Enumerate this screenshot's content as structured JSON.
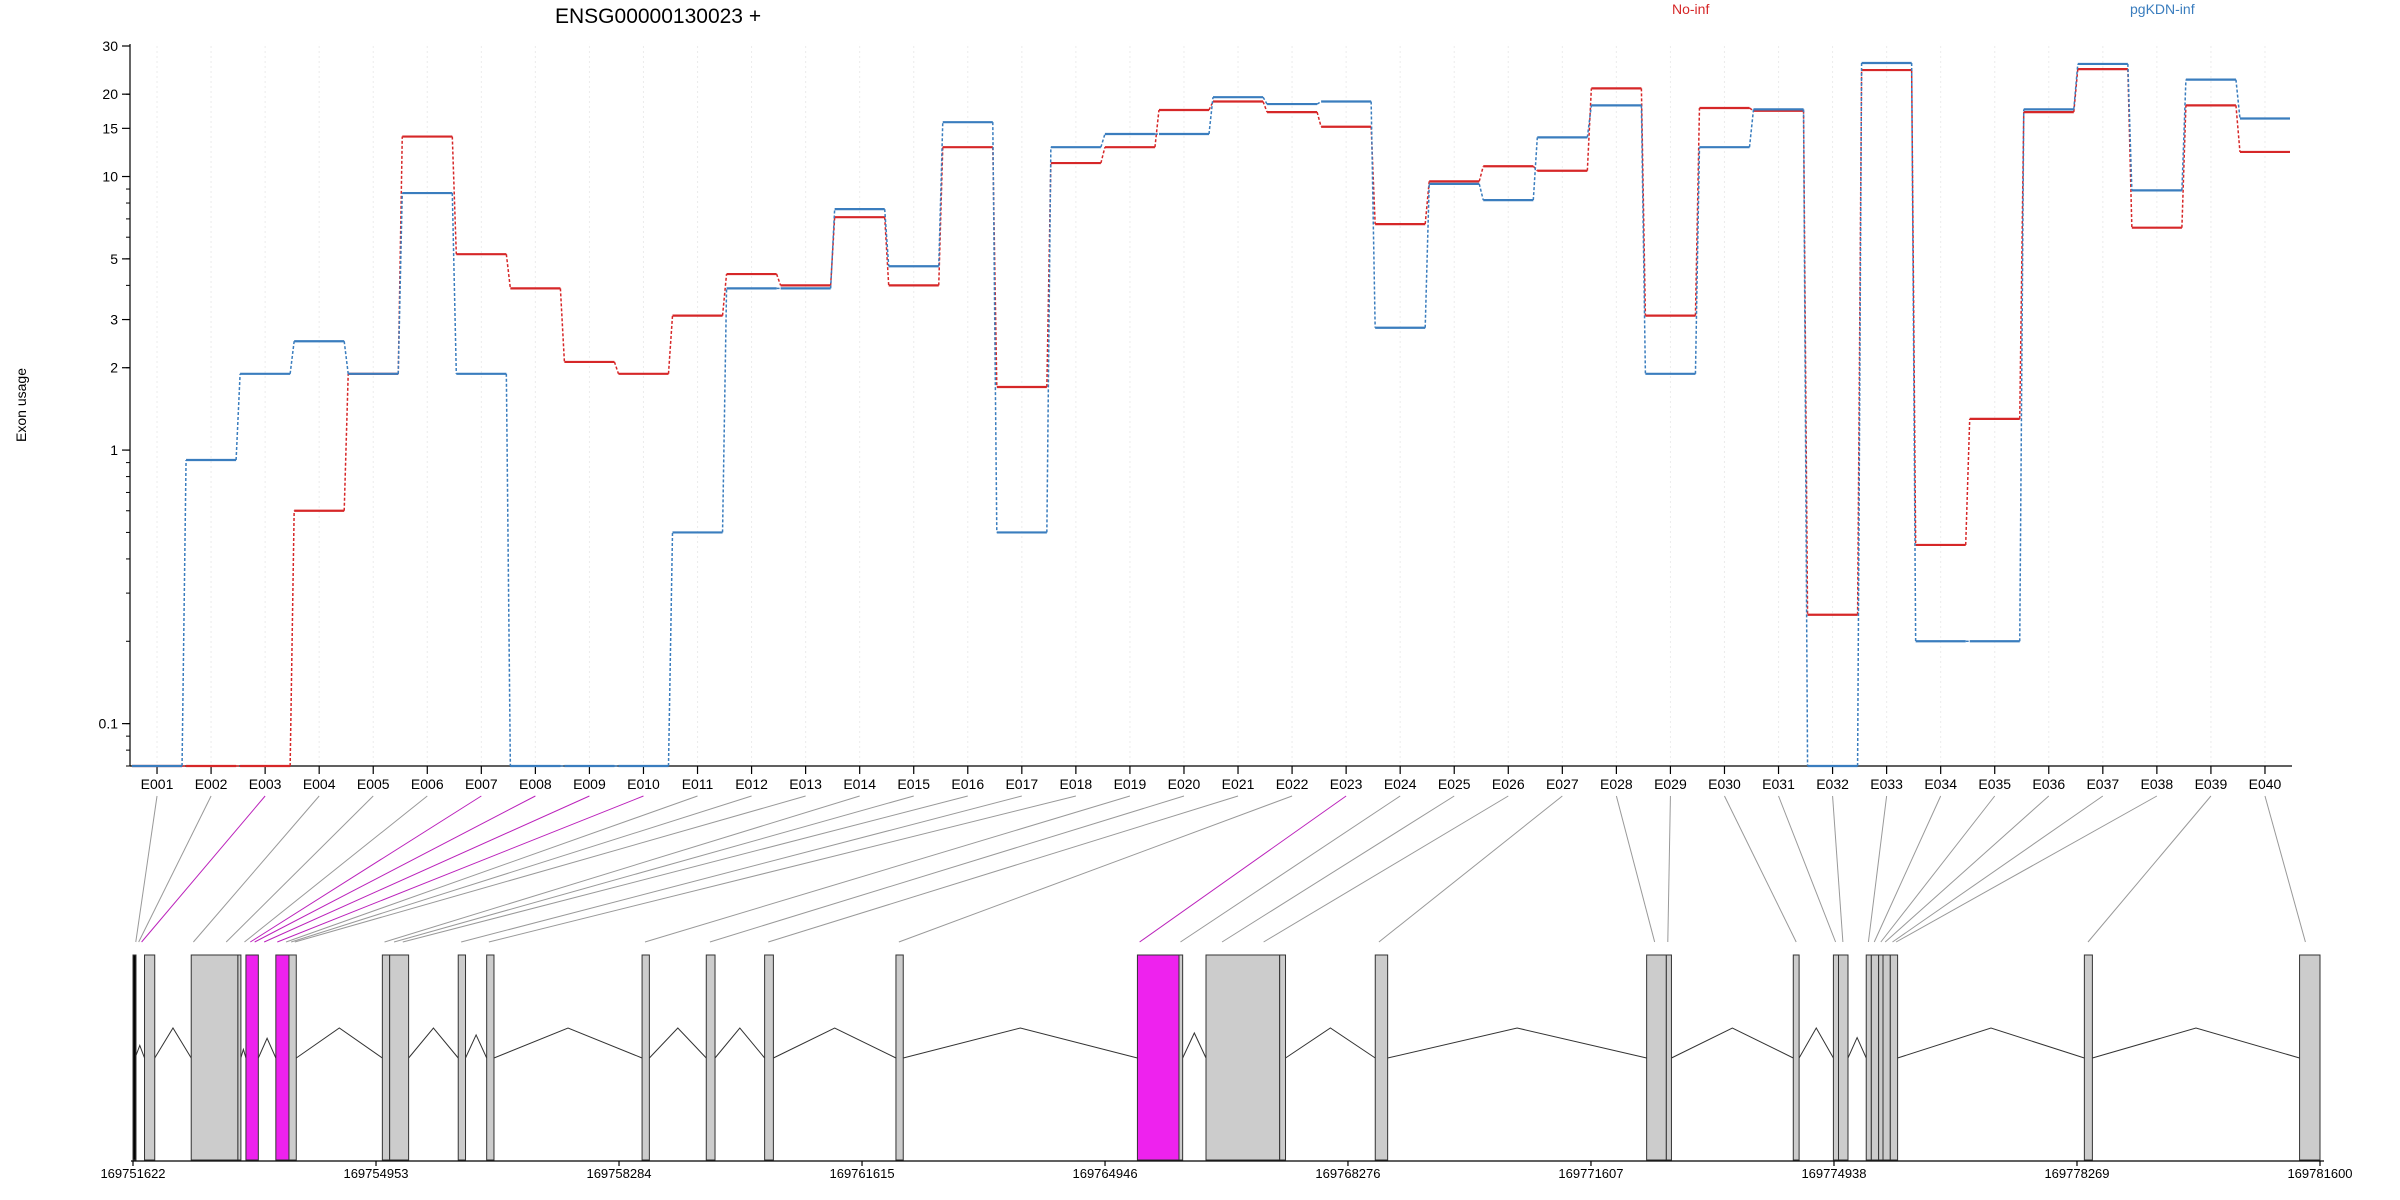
{
  "chart_data": {
    "type": "line",
    "title": "ENSG00000130023 +",
    "ylabel": "Exon usage",
    "y_scale": "log",
    "ylim": [
      0.07,
      30
    ],
    "y_ticks": [
      {
        "value": 0.1,
        "label": "0.1"
      },
      {
        "value": 1,
        "label": "1"
      },
      {
        "value": 2,
        "label": "2"
      },
      {
        "value": 3,
        "label": "3"
      },
      {
        "value": 5,
        "label": "5"
      },
      {
        "value": 10,
        "label": "10"
      },
      {
        "value": 15,
        "label": "15"
      },
      {
        "value": 20,
        "label": "20"
      },
      {
        "value": 30,
        "label": "30"
      }
    ],
    "grid": "vertical dotted lines at each exon",
    "legend_position": "top",
    "categories": [
      "E001",
      "E002",
      "E003",
      "E004",
      "E005",
      "E006",
      "E007",
      "E008",
      "E009",
      "E010",
      "E011",
      "E012",
      "E013",
      "E014",
      "E015",
      "E016",
      "E017",
      "E018",
      "E019",
      "E020",
      "E021",
      "E022",
      "E023",
      "E024",
      "E025",
      "E026",
      "E027",
      "E028",
      "E029",
      "E030",
      "E031",
      "E032",
      "E033",
      "E034",
      "E035",
      "E036",
      "E037",
      "E038",
      "E039",
      "E040"
    ],
    "series": [
      {
        "name": "No-inf",
        "color": "#d62728",
        "values": [
          0.07,
          0.07,
          0.07,
          0.6,
          1.9,
          14.0,
          5.2,
          3.9,
          2.1,
          1.9,
          3.1,
          4.4,
          4.0,
          7.1,
          4.0,
          12.8,
          1.7,
          11.2,
          12.8,
          17.5,
          18.8,
          17.2,
          15.2,
          6.7,
          9.6,
          10.9,
          10.5,
          21.0,
          3.1,
          17.8,
          17.4,
          0.25,
          24.5,
          0.45,
          1.3,
          17.2,
          24.7,
          6.5,
          18.2,
          12.3
        ]
      },
      {
        "name": "pgKDN-inf",
        "color": "#3a7dbe",
        "values": [
          0.07,
          0.92,
          1.9,
          2.5,
          1.9,
          8.7,
          1.9,
          0.07,
          0.07,
          0.07,
          0.5,
          3.9,
          3.9,
          7.6,
          4.7,
          15.8,
          0.5,
          12.8,
          14.3,
          14.3,
          19.5,
          18.4,
          18.8,
          2.8,
          9.4,
          8.2,
          13.9,
          18.2,
          1.9,
          12.8,
          17.6,
          0.07,
          26.0,
          0.2,
          0.2,
          17.6,
          25.8,
          8.9,
          22.6,
          16.3
        ]
      }
    ],
    "gene_model": {
      "coordinate_labels": [
        "169751622",
        "169754953",
        "169758284",
        "169761615",
        "169764946",
        "169768276",
        "169771607",
        "169774938",
        "169778269",
        "169781600"
      ],
      "coordinate_range": [
        169751622,
        169781600
      ],
      "exons": [
        {
          "start": 169751622,
          "end": 169751650,
          "color": "#000000"
        },
        {
          "start": 169751780,
          "end": 169751920,
          "color": "#cccccc"
        },
        {
          "start": 169752420,
          "end": 169753060,
          "color": "#cccccc"
        },
        {
          "start": 169753060,
          "end": 169753100,
          "color": "#cccccc"
        },
        {
          "start": 169753170,
          "end": 169753340,
          "color": "#ee22ee"
        },
        {
          "start": 169753580,
          "end": 169753760,
          "color": "#ee22ee"
        },
        {
          "start": 169753760,
          "end": 169753860,
          "color": "#cccccc"
        },
        {
          "start": 169755040,
          "end": 169755140,
          "color": "#cccccc"
        },
        {
          "start": 169755140,
          "end": 169755400,
          "color": "#cccccc"
        },
        {
          "start": 169756080,
          "end": 169756180,
          "color": "#cccccc"
        },
        {
          "start": 169756470,
          "end": 169756570,
          "color": "#cccccc"
        },
        {
          "start": 169758600,
          "end": 169758700,
          "color": "#cccccc"
        },
        {
          "start": 169759480,
          "end": 169759600,
          "color": "#cccccc"
        },
        {
          "start": 169760280,
          "end": 169760400,
          "color": "#cccccc"
        },
        {
          "start": 169762080,
          "end": 169762180,
          "color": "#cccccc"
        },
        {
          "start": 169765390,
          "end": 169765960,
          "color": "#ee22ee"
        },
        {
          "start": 169765960,
          "end": 169766010,
          "color": "#cccccc"
        },
        {
          "start": 169766330,
          "end": 169767340,
          "color": "#cccccc"
        },
        {
          "start": 169767340,
          "end": 169767420,
          "color": "#cccccc"
        },
        {
          "start": 169768650,
          "end": 169768820,
          "color": "#cccccc"
        },
        {
          "start": 169772370,
          "end": 169772640,
          "color": "#cccccc"
        },
        {
          "start": 169772640,
          "end": 169772710,
          "color": "#cccccc"
        },
        {
          "start": 169774380,
          "end": 169774460,
          "color": "#cccccc"
        },
        {
          "start": 169774930,
          "end": 169775000,
          "color": "#cccccc"
        },
        {
          "start": 169775000,
          "end": 169775130,
          "color": "#cccccc"
        },
        {
          "start": 169775380,
          "end": 169775450,
          "color": "#cccccc"
        },
        {
          "start": 169775450,
          "end": 169775550,
          "color": "#cccccc"
        },
        {
          "start": 169775550,
          "end": 169775610,
          "color": "#cccccc"
        },
        {
          "start": 169775610,
          "end": 169775710,
          "color": "#cccccc"
        },
        {
          "start": 169775710,
          "end": 169775810,
          "color": "#cccccc"
        },
        {
          "start": 169778370,
          "end": 169778480,
          "color": "#cccccc"
        },
        {
          "start": 169781320,
          "end": 169781600,
          "color": "#cccccc"
        }
      ],
      "exon_bin_links": [
        {
          "exon": "E001",
          "pos": 169751660,
          "color": "#999999"
        },
        {
          "exon": "E002",
          "pos": 169751700,
          "color": "#999999"
        },
        {
          "exon": "E003",
          "pos": 169751740,
          "color": "#bb22bb"
        },
        {
          "exon": "E004",
          "pos": 169752450,
          "color": "#999999"
        },
        {
          "exon": "E005",
          "pos": 169752900,
          "color": "#999999"
        },
        {
          "exon": "E006",
          "pos": 169753150,
          "color": "#999999"
        },
        {
          "exon": "E007",
          "pos": 169753230,
          "color": "#bb22bb"
        },
        {
          "exon": "E008",
          "pos": 169753290,
          "color": "#bb22bb"
        },
        {
          "exon": "E009",
          "pos": 169753420,
          "color": "#bb22bb"
        },
        {
          "exon": "E010",
          "pos": 169753600,
          "color": "#bb22bb"
        },
        {
          "exon": "E011",
          "pos": 169753720,
          "color": "#999999"
        },
        {
          "exon": "E012",
          "pos": 169753790,
          "color": "#999999"
        },
        {
          "exon": "E013",
          "pos": 169753840,
          "color": "#999999"
        },
        {
          "exon": "E014",
          "pos": 169755070,
          "color": "#999999"
        },
        {
          "exon": "E015",
          "pos": 169755200,
          "color": "#999999"
        },
        {
          "exon": "E016",
          "pos": 169755320,
          "color": "#999999"
        },
        {
          "exon": "E017",
          "pos": 169756120,
          "color": "#999999"
        },
        {
          "exon": "E018",
          "pos": 169756500,
          "color": "#999999"
        },
        {
          "exon": "E019",
          "pos": 169758640,
          "color": "#999999"
        },
        {
          "exon": "E020",
          "pos": 169759530,
          "color": "#999999"
        },
        {
          "exon": "E021",
          "pos": 169760330,
          "color": "#999999"
        },
        {
          "exon": "E022",
          "pos": 169762120,
          "color": "#999999"
        },
        {
          "exon": "E023",
          "pos": 169765420,
          "color": "#bb22bb"
        },
        {
          "exon": "E024",
          "pos": 169765980,
          "color": "#999999"
        },
        {
          "exon": "E025",
          "pos": 169766550,
          "color": "#999999"
        },
        {
          "exon": "E026",
          "pos": 169767120,
          "color": "#999999"
        },
        {
          "exon": "E027",
          "pos": 169768700,
          "color": "#999999"
        },
        {
          "exon": "E028",
          "pos": 169772480,
          "color": "#999999"
        },
        {
          "exon": "E029",
          "pos": 169772660,
          "color": "#999999"
        },
        {
          "exon": "E030",
          "pos": 169774420,
          "color": "#999999"
        },
        {
          "exon": "E031",
          "pos": 169774960,
          "color": "#999999"
        },
        {
          "exon": "E032",
          "pos": 169775060,
          "color": "#999999"
        },
        {
          "exon": "E033",
          "pos": 169775410,
          "color": "#999999"
        },
        {
          "exon": "E034",
          "pos": 169775490,
          "color": "#999999"
        },
        {
          "exon": "E035",
          "pos": 169775580,
          "color": "#999999"
        },
        {
          "exon": "E036",
          "pos": 169775640,
          "color": "#999999"
        },
        {
          "exon": "E037",
          "pos": 169775740,
          "color": "#999999"
        },
        {
          "exon": "E038",
          "pos": 169775790,
          "color": "#999999"
        },
        {
          "exon": "E039",
          "pos": 169778420,
          "color": "#999999"
        },
        {
          "exon": "E040",
          "pos": 169781400,
          "color": "#999999"
        }
      ]
    }
  }
}
